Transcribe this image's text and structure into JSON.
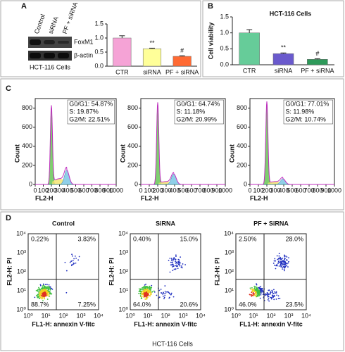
{
  "panel_labels": [
    "A",
    "B",
    "C",
    "D"
  ],
  "western_blot": {
    "lanes": [
      "Control",
      "siRNA",
      "PF + siRNA"
    ],
    "bands": [
      "FoxM1",
      "β-actin"
    ],
    "caption": "HCT-116  Cells"
  },
  "chart_data": [
    {
      "type": "bar",
      "categories": [
        "CTR",
        "siRNA",
        "PF + siRNA"
      ],
      "values": [
        1.0,
        0.62,
        0.35
      ],
      "errors": [
        0.08,
        0.02,
        0.02
      ],
      "colors": [
        "#f5a3d6",
        "#ffff99",
        "#ff6a33"
      ],
      "ylim": [
        0,
        1.5
      ],
      "yticks": [
        {
          "value": 0,
          "label": "0.0"
        },
        {
          "value": 0.5,
          "label": "0.5"
        },
        {
          "value": 1.0,
          "label": "1.0"
        },
        {
          "value": 1.5,
          "label": "1.5"
        }
      ],
      "annotations": [
        {
          "category": "siRNA",
          "text": "**"
        },
        {
          "category": "PF + siRNA",
          "text": "#"
        }
      ]
    },
    {
      "type": "bar",
      "title": "HCT-116 Cells",
      "ylabel": "Cell viability",
      "categories": [
        "CTR",
        "siRNA",
        "PF + siRNA"
      ],
      "values": [
        1.0,
        0.35,
        0.17
      ],
      "errors": [
        0.1,
        0.02,
        0.02
      ],
      "colors": [
        "#66cc99",
        "#6a5acd",
        "#2e9a5a"
      ],
      "ylim": [
        0,
        1.5
      ],
      "yticks": [
        {
          "value": 0,
          "label": "0.0"
        },
        {
          "value": 0.5,
          "label": "0.5"
        },
        {
          "value": 1.0,
          "label": "1.0"
        },
        {
          "value": 1.5,
          "label": "1.5"
        }
      ],
      "annotations": [
        {
          "category": "siRNA",
          "text": "**"
        },
        {
          "category": "PF + siRNA",
          "text": "#"
        }
      ]
    }
  ],
  "cell_cycle": {
    "xlabel": "FL2-H",
    "ylabel": "Count",
    "xlim": [
      0,
      1000
    ],
    "ylim": [
      0,
      900
    ],
    "xticks": [
      0,
      100,
      200,
      300,
      400,
      500,
      600,
      700,
      800,
      900,
      1000
    ],
    "yticks": [
      0,
      200,
      400,
      600,
      800
    ],
    "plots": [
      {
        "lines": [
          "G0/G1: 54.87%",
          "S: 19.87%",
          "G2/M: 22.51%"
        ]
      },
      {
        "lines": [
          "G0/G1: 64.74%",
          "S: 11.18%",
          "G2/M: 20.99%"
        ]
      },
      {
        "lines": [
          "G0/G1: 77.01%",
          "S: 11.98%",
          "G2/M: 10.74%"
        ]
      }
    ]
  },
  "apoptosis": {
    "xlabel": "FL1-H: annexin V-fitc",
    "ylabel": "FL2-H: PI",
    "ticks": [
      "10⁰",
      "10¹",
      "10²",
      "10³",
      "10⁴"
    ],
    "plots": [
      {
        "title": "Control",
        "quadrants": [
          "0.22%",
          "3.83%",
          "88.7%",
          "7.25%"
        ]
      },
      {
        "title": "SiRNA",
        "quadrants": [
          "0.40%",
          "15.0%",
          "64.0%",
          "20.6%"
        ]
      },
      {
        "title": "PF + SiRNA",
        "quadrants": [
          "2.50%",
          "28.0%",
          "46.0%",
          "23.5%"
        ]
      }
    ],
    "footer": "HCT-116 Cells"
  }
}
